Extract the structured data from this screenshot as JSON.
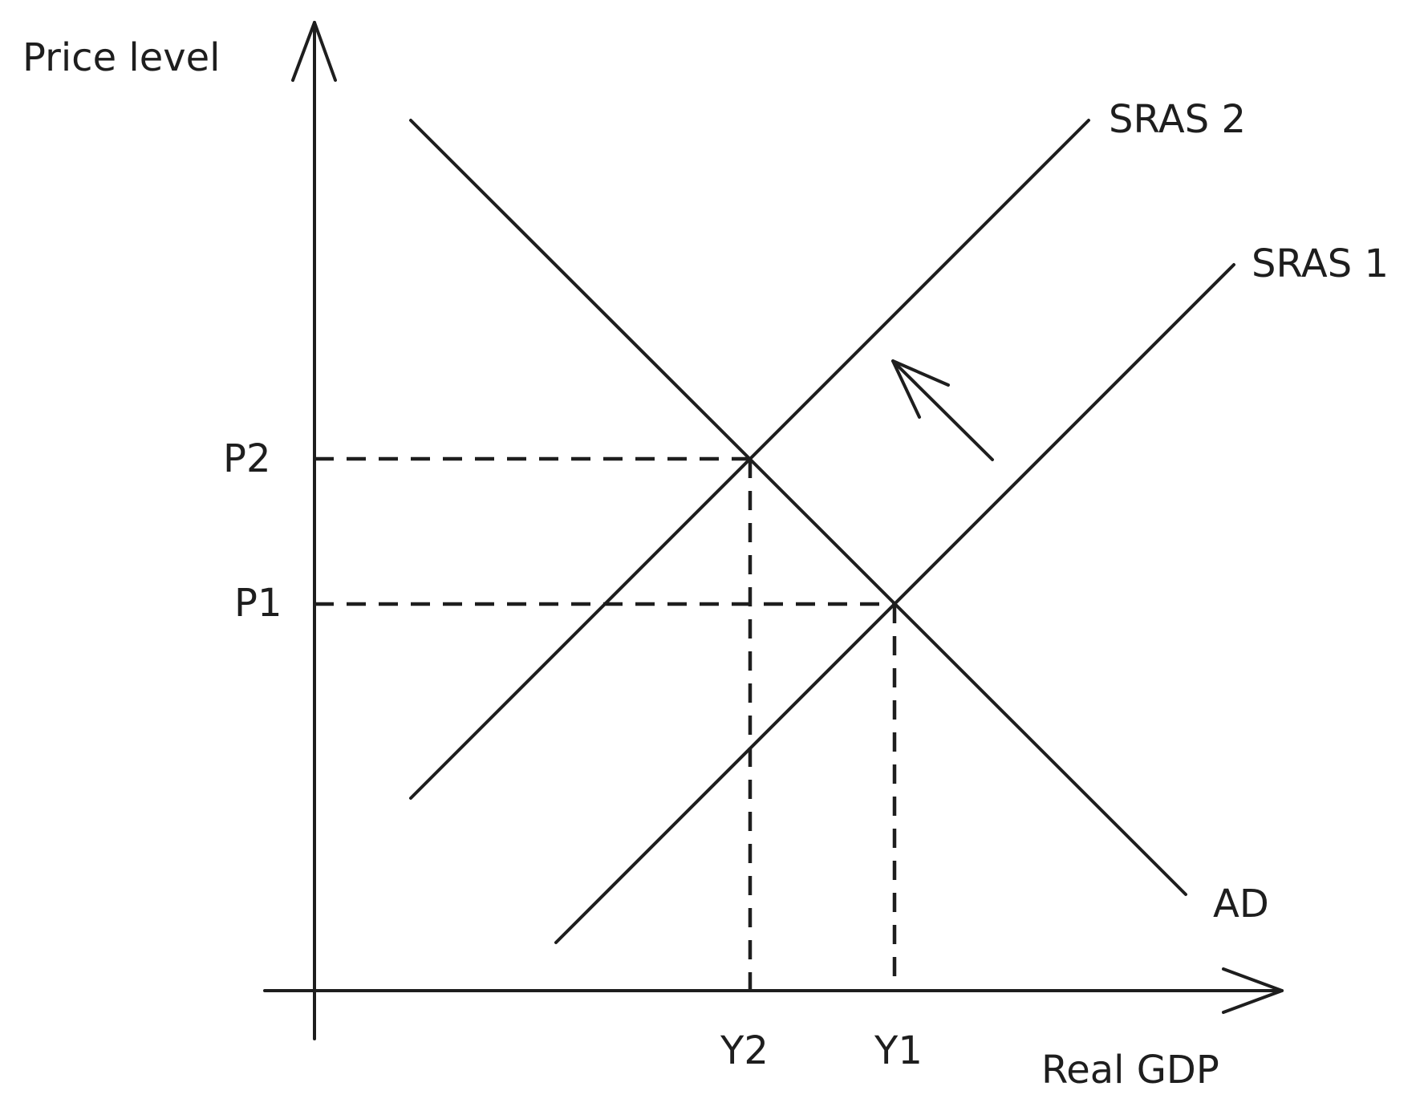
{
  "diagram": {
    "axes": {
      "y_label": "Price level",
      "x_label": "Real GDP"
    },
    "curves": {
      "sras2_label": "SRAS 2",
      "sras1_label": "SRAS 1",
      "ad_label": "AD"
    },
    "price_levels": {
      "p2": "P2",
      "p1": "P1"
    },
    "output_levels": {
      "y2": "Y2",
      "y1": "Y1"
    },
    "shift": {
      "direction": "up-left",
      "from": "SRAS 1",
      "to": "SRAS 2"
    }
  }
}
